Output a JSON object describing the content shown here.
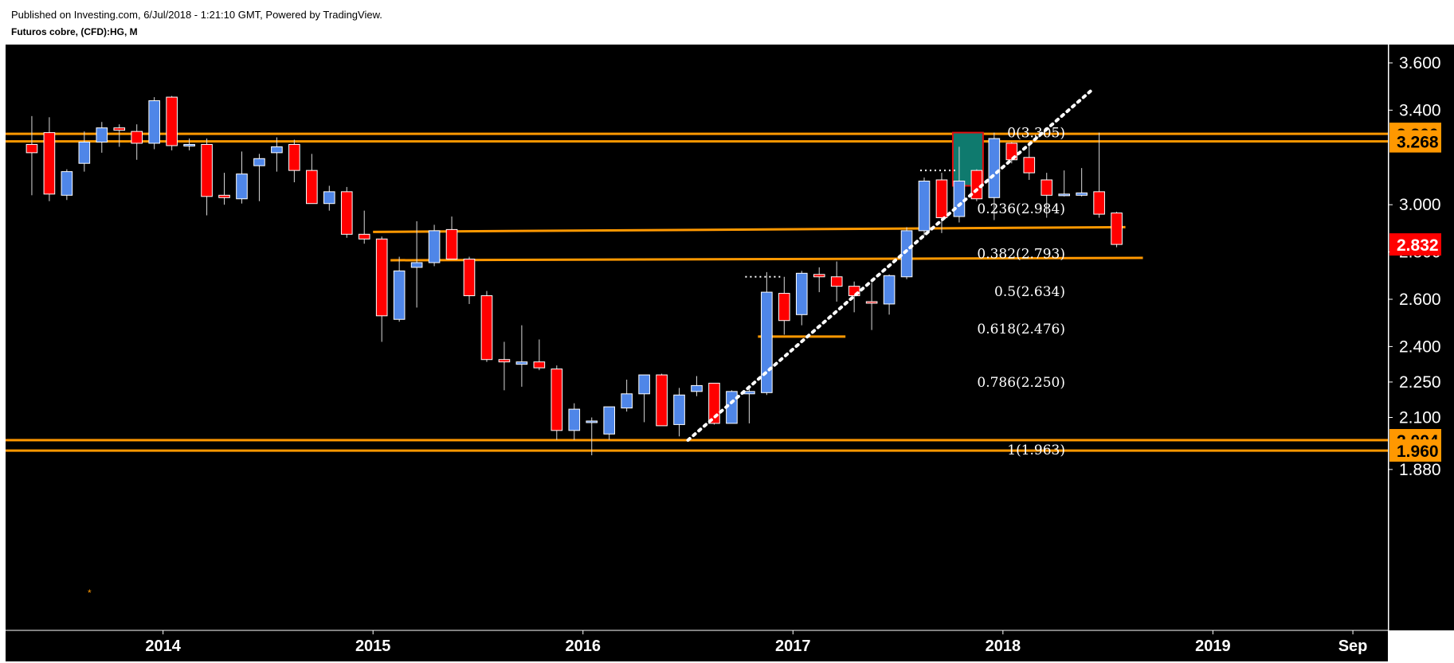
{
  "header": {
    "publish_line": "Published on Investing.com, 6/Jul/2018 - 1:21:10 GMT, Powered by TradingView.",
    "symbol_line": "Futuros cobre, (CFD):HG, M"
  },
  "colors": {
    "background": "#000000",
    "bull": "#4f86e8",
    "bear": "#ff0000",
    "level_line": "#ff9800",
    "trend_line": "#ffffff",
    "highlight_fill": "#0f7a6e",
    "highlight_border": "#e01010"
  },
  "chart_data": {
    "type": "candlestick",
    "interval": "M",
    "x_range": [
      "2013-04",
      "2019-11"
    ],
    "ylim": [
      1.86,
      3.7
    ],
    "y_ticks": [
      {
        "value": 3.6,
        "label": "3.600"
      },
      {
        "value": 3.4,
        "label": "3.400"
      },
      {
        "value": 3.0,
        "label": "3.000"
      },
      {
        "value": 2.8,
        "label": "2.800"
      },
      {
        "value": 2.6,
        "label": "2.600"
      },
      {
        "value": 2.4,
        "label": "2.400"
      },
      {
        "value": 2.25,
        "label": "2.250"
      },
      {
        "value": 2.1,
        "label": "2.100"
      },
      {
        "value": 1.88,
        "label": "1.880"
      }
    ],
    "x_ticks": [
      {
        "date": "2014-01",
        "label": "2014"
      },
      {
        "date": "2015-01",
        "label": "2015"
      },
      {
        "date": "2016-01",
        "label": "2016"
      },
      {
        "date": "2017-01",
        "label": "2017"
      },
      {
        "date": "2018-01",
        "label": "2018"
      },
      {
        "date": "2019-01",
        "label": "2019"
      },
      {
        "date": "2019-09",
        "label": "Sep"
      }
    ],
    "price_tags": [
      {
        "value": 3.3,
        "label": "3.300",
        "color": "#ff9800"
      },
      {
        "value": 3.268,
        "label": "3.268",
        "color": "#ff9800"
      },
      {
        "value": 2.832,
        "label": "2.832",
        "color": "#ff0000"
      },
      {
        "value": 2.004,
        "label": "2.004",
        "color": "#ff9800"
      },
      {
        "value": 1.96,
        "label": "1.960",
        "color": "#ff9800"
      }
    ],
    "horizontal_levels": [
      {
        "value": 3.3,
        "from": "2013-04",
        "to": "2019-11"
      },
      {
        "value": 3.268,
        "from": "2013-04",
        "to": "2019-11"
      },
      {
        "value": 2.004,
        "from": "2013-04",
        "to": "2019-11"
      },
      {
        "value": 1.96,
        "from": "2013-04",
        "to": "2019-11"
      },
      {
        "from": "2015-01",
        "to": "2018-08",
        "value_start": 2.885,
        "value_end": 2.905
      },
      {
        "from": "2015-02",
        "to": "2018-09",
        "value_start": 2.765,
        "value_end": 2.775
      },
      {
        "value": 2.442,
        "from": "2016-11",
        "to": "2017-04"
      }
    ],
    "trend_line": {
      "from": {
        "date": "2016-07",
        "value": 2.004
      },
      "to": {
        "date": "2018-06",
        "value": 3.48
      }
    },
    "dotted_markers": [
      {
        "value": 2.695,
        "from": "2016-10",
        "to": "2016-12"
      },
      {
        "value": 3.145,
        "from": "2017-08",
        "to": "2017-10"
      }
    ],
    "highlight_box": {
      "from": "2017-10",
      "to": "2017-11",
      "high": 3.305,
      "low": 3.08
    },
    "fib_levels": [
      {
        "label": "0(3.305)",
        "value": 3.305
      },
      {
        "label": "0.236(2.984)",
        "value": 2.984
      },
      {
        "label": "0.382(2.793)",
        "value": 2.793
      },
      {
        "label": "0.5(2.634)",
        "value": 2.634
      },
      {
        "label": "0.618(2.476)",
        "value": 2.476
      },
      {
        "label": "0.786(2.250)",
        "value": 2.25
      },
      {
        "label": "1(1.963)",
        "value": 1.963
      }
    ],
    "candles": [
      {
        "date": "2013-05",
        "o": 3.255,
        "h": 3.375,
        "l": 3.04,
        "c": 3.22
      },
      {
        "date": "2013-06",
        "o": 3.305,
        "h": 3.37,
        "l": 3.015,
        "c": 3.045
      },
      {
        "date": "2013-07",
        "o": 3.04,
        "h": 3.15,
        "l": 3.02,
        "c": 3.14
      },
      {
        "date": "2013-08",
        "o": 3.175,
        "h": 3.31,
        "l": 3.14,
        "c": 3.265
      },
      {
        "date": "2013-09",
        "o": 3.265,
        "h": 3.35,
        "l": 3.22,
        "c": 3.325
      },
      {
        "date": "2013-10",
        "o": 3.325,
        "h": 3.34,
        "l": 3.245,
        "c": 3.315
      },
      {
        "date": "2013-11",
        "o": 3.31,
        "h": 3.34,
        "l": 3.19,
        "c": 3.26
      },
      {
        "date": "2013-12",
        "o": 3.26,
        "h": 3.455,
        "l": 3.235,
        "c": 3.44
      },
      {
        "date": "2014-01",
        "o": 3.455,
        "h": 3.46,
        "l": 3.23,
        "c": 3.25
      },
      {
        "date": "2014-02",
        "o": 3.25,
        "h": 3.28,
        "l": 3.23,
        "c": 3.255
      },
      {
        "date": "2014-03",
        "o": 3.255,
        "h": 3.28,
        "l": 2.955,
        "c": 3.035
      },
      {
        "date": "2014-04",
        "o": 3.04,
        "h": 3.135,
        "l": 3.0,
        "c": 3.03
      },
      {
        "date": "2014-05",
        "o": 3.025,
        "h": 3.225,
        "l": 3.005,
        "c": 3.13
      },
      {
        "date": "2014-06",
        "o": 3.165,
        "h": 3.215,
        "l": 3.015,
        "c": 3.195
      },
      {
        "date": "2014-07",
        "o": 3.22,
        "h": 3.285,
        "l": 3.14,
        "c": 3.245
      },
      {
        "date": "2014-08",
        "o": 3.255,
        "h": 3.275,
        "l": 3.095,
        "c": 3.145
      },
      {
        "date": "2014-09",
        "o": 3.145,
        "h": 3.215,
        "l": 3.01,
        "c": 3.005
      },
      {
        "date": "2014-10",
        "o": 3.005,
        "h": 3.08,
        "l": 2.975,
        "c": 3.055
      },
      {
        "date": "2014-11",
        "o": 3.055,
        "h": 3.075,
        "l": 2.86,
        "c": 2.875
      },
      {
        "date": "2014-12",
        "o": 2.875,
        "h": 2.975,
        "l": 2.835,
        "c": 2.855
      },
      {
        "date": "2015-01",
        "o": 2.855,
        "h": 2.865,
        "l": 2.42,
        "c": 2.53
      },
      {
        "date": "2015-02",
        "o": 2.515,
        "h": 2.78,
        "l": 2.505,
        "c": 2.72
      },
      {
        "date": "2015-03",
        "o": 2.735,
        "h": 2.93,
        "l": 2.565,
        "c": 2.755
      },
      {
        "date": "2015-04",
        "o": 2.755,
        "h": 2.915,
        "l": 2.74,
        "c": 2.89
      },
      {
        "date": "2015-05",
        "o": 2.895,
        "h": 2.95,
        "l": 2.77,
        "c": 2.77
      },
      {
        "date": "2015-06",
        "o": 2.77,
        "h": 2.78,
        "l": 2.58,
        "c": 2.615
      },
      {
        "date": "2015-07",
        "o": 2.615,
        "h": 2.635,
        "l": 2.335,
        "c": 2.345
      },
      {
        "date": "2015-08",
        "o": 2.345,
        "h": 2.42,
        "l": 2.215,
        "c": 2.335
      },
      {
        "date": "2015-09",
        "o": 2.325,
        "h": 2.49,
        "l": 2.23,
        "c": 2.335
      },
      {
        "date": "2015-10",
        "o": 2.335,
        "h": 2.43,
        "l": 2.3,
        "c": 2.31
      },
      {
        "date": "2015-11",
        "o": 2.305,
        "h": 2.32,
        "l": 2.005,
        "c": 2.045
      },
      {
        "date": "2015-12",
        "o": 2.045,
        "h": 2.16,
        "l": 2.005,
        "c": 2.135
      },
      {
        "date": "2016-01",
        "o": 2.08,
        "h": 2.1,
        "l": 1.94,
        "c": 2.085
      },
      {
        "date": "2016-02",
        "o": 2.03,
        "h": 2.145,
        "l": 2.005,
        "c": 2.145
      },
      {
        "date": "2016-03",
        "o": 2.14,
        "h": 2.26,
        "l": 2.125,
        "c": 2.2
      },
      {
        "date": "2016-04",
        "o": 2.2,
        "h": 2.275,
        "l": 2.08,
        "c": 2.28
      },
      {
        "date": "2016-05",
        "o": 2.28,
        "h": 2.285,
        "l": 2.065,
        "c": 2.065
      },
      {
        "date": "2016-06",
        "o": 2.07,
        "h": 2.225,
        "l": 2.02,
        "c": 2.195
      },
      {
        "date": "2016-07",
        "o": 2.21,
        "h": 2.275,
        "l": 2.19,
        "c": 2.235
      },
      {
        "date": "2016-08",
        "o": 2.245,
        "h": 2.245,
        "l": 2.07,
        "c": 2.075
      },
      {
        "date": "2016-09",
        "o": 2.075,
        "h": 2.215,
        "l": 2.075,
        "c": 2.21
      },
      {
        "date": "2016-10",
        "o": 2.2,
        "h": 2.225,
        "l": 2.075,
        "c": 2.21
      },
      {
        "date": "2016-11",
        "o": 2.205,
        "h": 2.715,
        "l": 2.195,
        "c": 2.63
      },
      {
        "date": "2016-12",
        "o": 2.625,
        "h": 2.695,
        "l": 2.45,
        "c": 2.51
      },
      {
        "date": "2017-01",
        "o": 2.535,
        "h": 2.72,
        "l": 2.49,
        "c": 2.71
      },
      {
        "date": "2017-02",
        "o": 2.705,
        "h": 2.735,
        "l": 2.63,
        "c": 2.695
      },
      {
        "date": "2017-03",
        "o": 2.695,
        "h": 2.76,
        "l": 2.59,
        "c": 2.655
      },
      {
        "date": "2017-04",
        "o": 2.655,
        "h": 2.675,
        "l": 2.545,
        "c": 2.615
      },
      {
        "date": "2017-05",
        "o": 2.59,
        "h": 2.67,
        "l": 2.47,
        "c": 2.585
      },
      {
        "date": "2017-06",
        "o": 2.58,
        "h": 2.705,
        "l": 2.535,
        "c": 2.7
      },
      {
        "date": "2017-07",
        "o": 2.695,
        "h": 2.905,
        "l": 2.685,
        "c": 2.89
      },
      {
        "date": "2017-08",
        "o": 2.89,
        "h": 3.115,
        "l": 2.87,
        "c": 3.1
      },
      {
        "date": "2017-09",
        "o": 3.105,
        "h": 3.135,
        "l": 2.88,
        "c": 2.945
      },
      {
        "date": "2017-10",
        "o": 2.95,
        "h": 3.245,
        "l": 2.925,
        "c": 3.1
      },
      {
        "date": "2017-11",
        "o": 3.145,
        "h": 3.15,
        "l": 3.015,
        "c": 3.025
      },
      {
        "date": "2017-12",
        "o": 3.03,
        "h": 3.305,
        "l": 2.935,
        "c": 3.28
      },
      {
        "date": "2018-01",
        "o": 3.26,
        "h": 3.265,
        "l": 3.175,
        "c": 3.19
      },
      {
        "date": "2018-02",
        "o": 3.2,
        "h": 3.26,
        "l": 3.105,
        "c": 3.135
      },
      {
        "date": "2018-03",
        "o": 3.105,
        "h": 3.135,
        "l": 2.945,
        "c": 3.04
      },
      {
        "date": "2018-04",
        "o": 3.04,
        "h": 3.145,
        "l": 3.035,
        "c": 3.045
      },
      {
        "date": "2018-05",
        "o": 3.04,
        "h": 3.155,
        "l": 3.035,
        "c": 3.05
      },
      {
        "date": "2018-06",
        "o": 3.055,
        "h": 3.305,
        "l": 2.945,
        "c": 2.96
      },
      {
        "date": "2018-07",
        "o": 2.965,
        "h": 2.97,
        "l": 2.82,
        "c": 2.832
      }
    ]
  }
}
